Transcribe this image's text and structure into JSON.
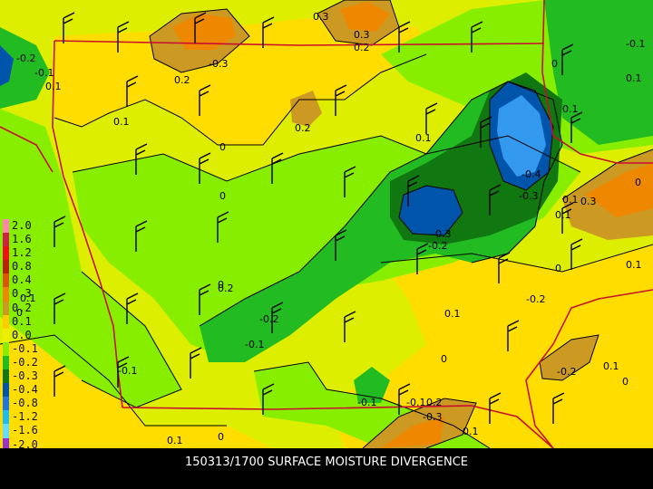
{
  "caption": "150313/1700 SURFACE MOISTURE DIVERGENCE",
  "legend": [
    {
      "label": "2.0",
      "color": "#ff88aa"
    },
    {
      "label": "1.6",
      "color": "#cc2244"
    },
    {
      "label": "1.2",
      "color": "#ee1111"
    },
    {
      "label": "0.8",
      "color": "#bb2200"
    },
    {
      "label": "0.4",
      "color": "#dd5500"
    },
    {
      "label": "0.3",
      "color": "#ee8800"
    },
    {
      "label": "0.2",
      "color": "#cc9922"
    },
    {
      "label": "0.1",
      "color": "#ffcc00"
    },
    {
      "label": "0.0",
      "color": "#eeee00"
    },
    {
      "label": "-0.1",
      "color": "#88ee00"
    },
    {
      "label": "-0.2",
      "color": "#22bb22"
    },
    {
      "label": "-0.3",
      "color": "#117711"
    },
    {
      "label": "-0.4",
      "color": "#0055aa"
    },
    {
      "label": "-0.8",
      "color": "#2277dd"
    },
    {
      "label": "-1.2",
      "color": "#22bbee"
    },
    {
      "label": "-1.6",
      "color": "#66ddff"
    },
    {
      "label": "-2.0",
      "color": "#9933cc"
    }
  ],
  "contour_labels": [
    "-0.2",
    "-0.1",
    "0.3",
    "-0.3",
    "0.2",
    "0.3",
    "0.2",
    "-0.1",
    "0",
    "0.1",
    "0",
    "0.2",
    "0.1",
    "-0.1",
    "0",
    "0.2",
    "0.1",
    "-0.4",
    "-0.3",
    "0.1",
    "0.3",
    "0.1",
    "0.1",
    "-0.3",
    "-0.2",
    "0",
    "-0.1",
    "0",
    "-0.2",
    "0.1",
    "0",
    "-0.2",
    "-0.1",
    "-0.1",
    "0.1",
    "0.2",
    "-0.3",
    "0.1",
    "0",
    "0.1",
    "0",
    "-0.2",
    "0.1",
    "0",
    "0.1",
    "0.1",
    "0"
  ],
  "colors": {
    "background": "#000000",
    "state_border": "#c8102e",
    "contour_line": "#000000"
  }
}
